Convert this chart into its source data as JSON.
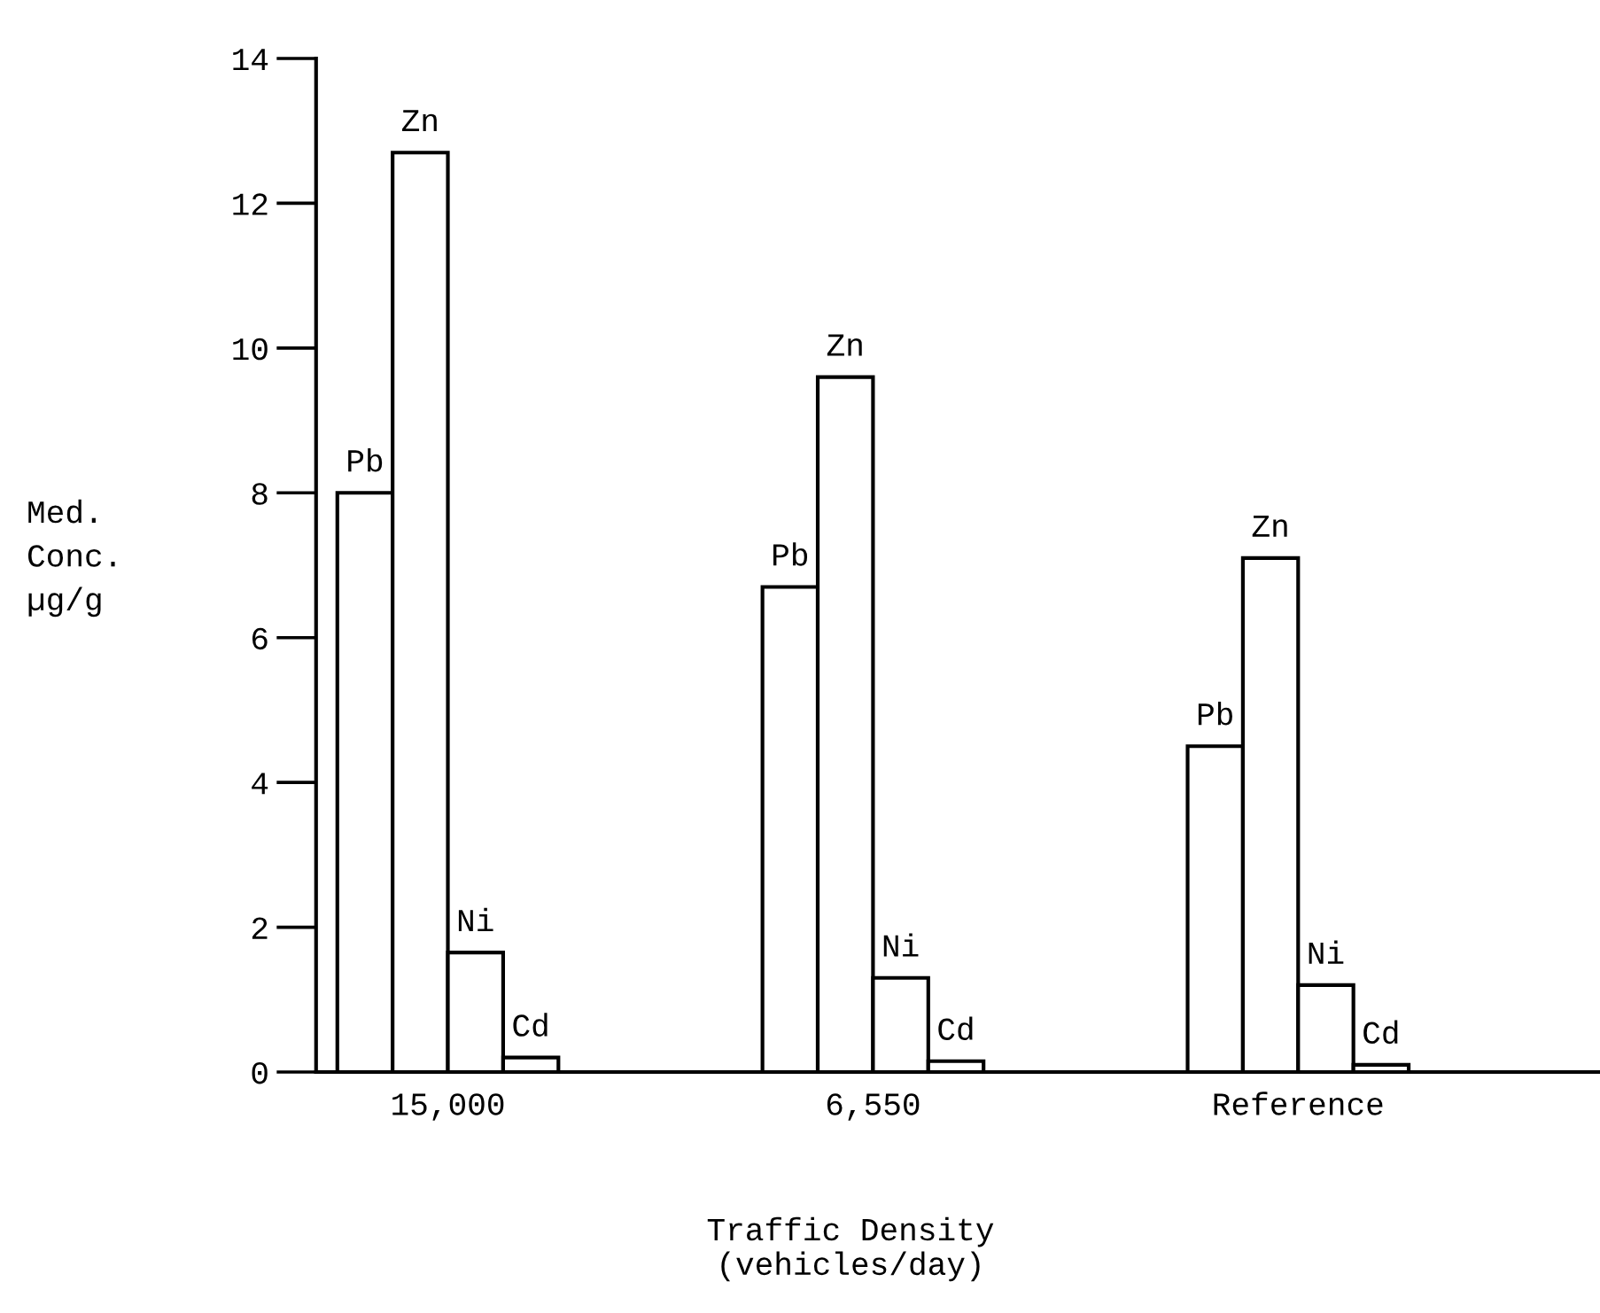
{
  "chart_data": {
    "type": "bar",
    "xlabel": "Traffic Density\n(vehicles/day)",
    "ylabel": "Med.\nConc.\nµg/g",
    "categories": [
      "15,000",
      "6,550",
      "Reference"
    ],
    "series": [
      {
        "name": "Pb",
        "color": "#ffffff",
        "values": [
          8.0,
          6.7,
          4.5
        ]
      },
      {
        "name": "Zn",
        "color": "#ffffff",
        "values": [
          12.7,
          9.6,
          7.1
        ]
      },
      {
        "name": "Ni",
        "color": "#ffffff",
        "values": [
          1.65,
          1.3,
          1.2
        ]
      },
      {
        "name": "Cd",
        "color": "#ffffff",
        "values": [
          0.2,
          0.15,
          0.1
        ]
      }
    ],
    "ylim": [
      0,
      14
    ],
    "yticks": [
      0,
      2,
      4,
      6,
      8,
      10,
      12,
      14
    ],
    "grid": false,
    "legend": false
  }
}
